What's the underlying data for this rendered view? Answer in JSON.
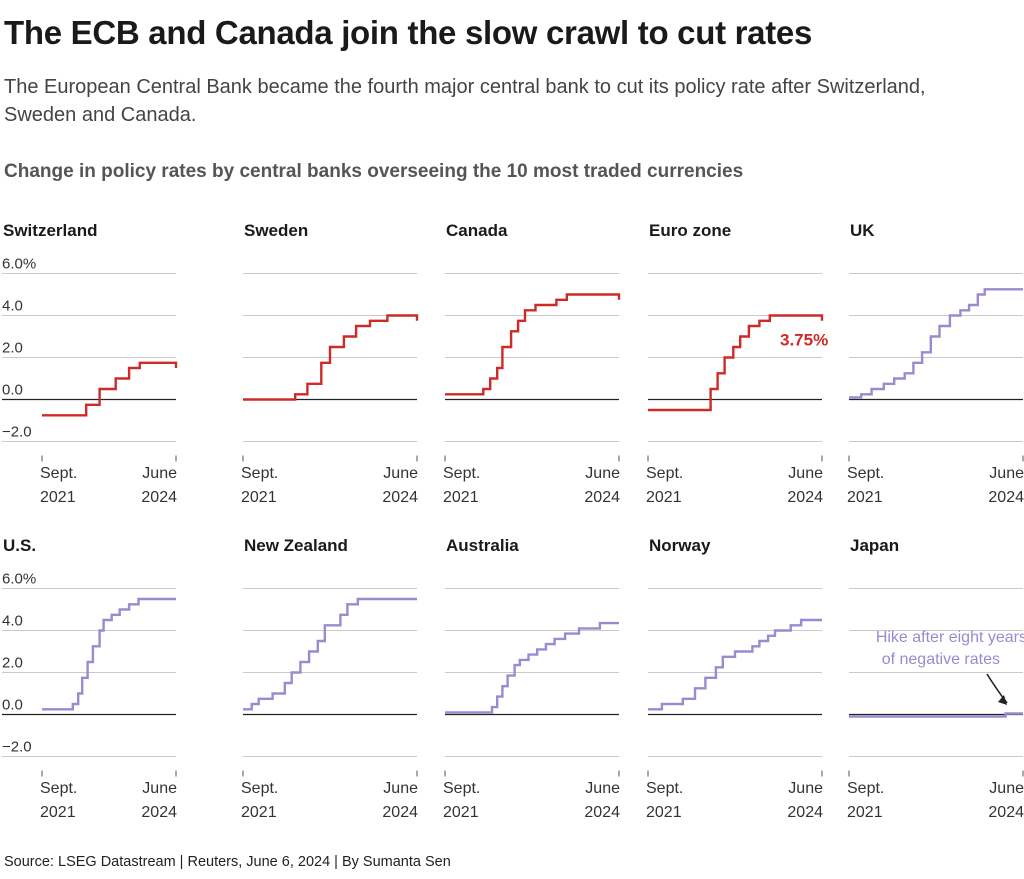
{
  "title": "The ECB and Canada join the slow crawl to cut rates",
  "subtitle": "The European Central Bank became the fourth major central bank to cut its policy rate after Switzerland, Sweden and Canada.",
  "chart_heading": "Change in policy rates by central banks overseeing the 10 most traded currencies",
  "source": "Source: LSEG Datastream | Reuters, June 6, 2024 | By Sumanta Sen",
  "colors": {
    "cut": "#cc2b28",
    "no_cut": "#9b8ad0",
    "grid": "#c9c9c9",
    "zero": "#222222",
    "text": "#1a1a1a",
    "axis_text": "#333333"
  },
  "y_axis": {
    "ticks": [
      6,
      4,
      2,
      0,
      -2
    ],
    "tick_labels": [
      "6.0%",
      "4.0",
      "2.0",
      "0.0",
      "−2.0"
    ],
    "ylim": [
      -2.5,
      6.5
    ]
  },
  "x_axis": {
    "tick_labels": [
      [
        "Sept.",
        "2021"
      ],
      [
        "June",
        "2024"
      ]
    ],
    "xlim": [
      "2021-09",
      "2024-06"
    ]
  },
  "chart_data": [
    {
      "type": "line",
      "step": true,
      "series_name": "Switzerland",
      "color": "cut",
      "points": [
        [
          0,
          -0.75
        ],
        [
          0.15,
          -0.75
        ],
        [
          0.33,
          -0.25
        ],
        [
          0.43,
          0.5
        ],
        [
          0.55,
          1.0
        ],
        [
          0.65,
          1.5
        ],
        [
          0.73,
          1.75
        ],
        [
          0.87,
          1.75
        ],
        [
          1.0,
          1.5
        ]
      ]
    },
    {
      "type": "line",
      "step": true,
      "series_name": "Sweden",
      "color": "cut",
      "points": [
        [
          0,
          0
        ],
        [
          0.24,
          0
        ],
        [
          0.3,
          0.25
        ],
        [
          0.37,
          0.75
        ],
        [
          0.45,
          1.75
        ],
        [
          0.5,
          2.5
        ],
        [
          0.58,
          3.0
        ],
        [
          0.65,
          3.5
        ],
        [
          0.73,
          3.75
        ],
        [
          0.83,
          4.0
        ],
        [
          0.97,
          4.0
        ],
        [
          1.0,
          3.75
        ]
      ]
    },
    {
      "type": "line",
      "step": true,
      "series_name": "Canada",
      "color": "cut",
      "points": [
        [
          0,
          0.25
        ],
        [
          0.17,
          0.25
        ],
        [
          0.22,
          0.5
        ],
        [
          0.26,
          1.0
        ],
        [
          0.3,
          1.5
        ],
        [
          0.33,
          2.5
        ],
        [
          0.38,
          3.25
        ],
        [
          0.42,
          3.75
        ],
        [
          0.46,
          4.25
        ],
        [
          0.52,
          4.5
        ],
        [
          0.64,
          4.75
        ],
        [
          0.7,
          5.0
        ],
        [
          0.97,
          5.0
        ],
        [
          1.0,
          4.75
        ]
      ]
    },
    {
      "type": "line",
      "step": true,
      "series_name": "Euro zone",
      "color": "cut",
      "points": [
        [
          0,
          -0.5
        ],
        [
          0.31,
          -0.5
        ],
        [
          0.36,
          0.5
        ],
        [
          0.4,
          1.25
        ],
        [
          0.44,
          2.0
        ],
        [
          0.49,
          2.5
        ],
        [
          0.53,
          3.0
        ],
        [
          0.58,
          3.5
        ],
        [
          0.64,
          3.75
        ],
        [
          0.7,
          4.0
        ],
        [
          0.98,
          4.0
        ],
        [
          1.0,
          3.75
        ]
      ],
      "label": "3.75%"
    },
    {
      "type": "line",
      "step": true,
      "series_name": "UK",
      "color": "no_cut",
      "points": [
        [
          0,
          0.1
        ],
        [
          0.07,
          0.25
        ],
        [
          0.13,
          0.5
        ],
        [
          0.2,
          0.75
        ],
        [
          0.26,
          1.0
        ],
        [
          0.32,
          1.25
        ],
        [
          0.37,
          1.75
        ],
        [
          0.42,
          2.25
        ],
        [
          0.47,
          3.0
        ],
        [
          0.52,
          3.5
        ],
        [
          0.58,
          4.0
        ],
        [
          0.64,
          4.25
        ],
        [
          0.69,
          4.5
        ],
        [
          0.74,
          5.0
        ],
        [
          0.78,
          5.25
        ],
        [
          1.0,
          5.25
        ]
      ]
    },
    {
      "type": "line",
      "step": true,
      "series_name": "U.S.",
      "color": "no_cut",
      "points": [
        [
          0,
          0.25
        ],
        [
          0.2,
          0.25
        ],
        [
          0.23,
          0.5
        ],
        [
          0.27,
          1.0
        ],
        [
          0.3,
          1.75
        ],
        [
          0.34,
          2.5
        ],
        [
          0.38,
          3.25
        ],
        [
          0.43,
          4.0
        ],
        [
          0.46,
          4.5
        ],
        [
          0.52,
          4.75
        ],
        [
          0.58,
          5.0
        ],
        [
          0.65,
          5.25
        ],
        [
          0.72,
          5.5
        ],
        [
          1.0,
          5.5
        ]
      ]
    },
    {
      "type": "line",
      "step": true,
      "series_name": "New Zealand",
      "color": "no_cut",
      "points": [
        [
          0,
          0.25
        ],
        [
          0.05,
          0.5
        ],
        [
          0.09,
          0.75
        ],
        [
          0.17,
          1.0
        ],
        [
          0.24,
          1.5
        ],
        [
          0.28,
          2.0
        ],
        [
          0.33,
          2.5
        ],
        [
          0.38,
          3.0
        ],
        [
          0.43,
          3.5
        ],
        [
          0.47,
          4.25
        ],
        [
          0.56,
          4.75
        ],
        [
          0.6,
          5.25
        ],
        [
          0.66,
          5.5
        ],
        [
          1.0,
          5.5
        ]
      ]
    },
    {
      "type": "line",
      "step": true,
      "series_name": "Australia",
      "color": "no_cut",
      "points": [
        [
          0,
          0.1
        ],
        [
          0.24,
          0.1
        ],
        [
          0.27,
          0.35
        ],
        [
          0.3,
          0.85
        ],
        [
          0.33,
          1.35
        ],
        [
          0.36,
          1.85
        ],
        [
          0.4,
          2.35
        ],
        [
          0.43,
          2.6
        ],
        [
          0.48,
          2.85
        ],
        [
          0.53,
          3.1
        ],
        [
          0.58,
          3.35
        ],
        [
          0.63,
          3.6
        ],
        [
          0.69,
          3.85
        ],
        [
          0.77,
          4.1
        ],
        [
          0.89,
          4.35
        ],
        [
          1.0,
          4.35
        ]
      ]
    },
    {
      "type": "line",
      "step": true,
      "series_name": "Norway",
      "color": "no_cut",
      "points": [
        [
          0,
          0.25
        ],
        [
          0.08,
          0.5
        ],
        [
          0.2,
          0.75
        ],
        [
          0.27,
          1.25
        ],
        [
          0.33,
          1.75
        ],
        [
          0.39,
          2.25
        ],
        [
          0.43,
          2.75
        ],
        [
          0.5,
          3.0
        ],
        [
          0.6,
          3.25
        ],
        [
          0.64,
          3.5
        ],
        [
          0.69,
          3.75
        ],
        [
          0.73,
          4.0
        ],
        [
          0.82,
          4.25
        ],
        [
          0.88,
          4.5
        ],
        [
          1.0,
          4.5
        ]
      ]
    },
    {
      "type": "line",
      "step": true,
      "series_name": "Japan",
      "color": "no_cut",
      "points": [
        [
          0,
          -0.1
        ],
        [
          0.88,
          -0.1
        ],
        [
          0.9,
          0.05
        ],
        [
          1.0,
          0.05
        ]
      ],
      "annotation": [
        "Hike after eight years",
        "of negative rates"
      ]
    }
  ]
}
